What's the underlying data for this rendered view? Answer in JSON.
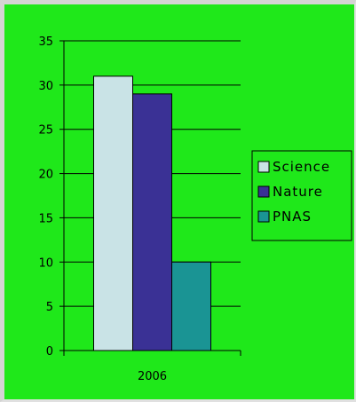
{
  "chart_data": {
    "type": "bar",
    "title": "",
    "xlabel": "",
    "ylabel": "",
    "categories": [
      "2006"
    ],
    "series": [
      {
        "name": "Science",
        "values": [
          31
        ],
        "color": "#c9e3e6"
      },
      {
        "name": "Nature",
        "values": [
          29
        ],
        "color": "#3a3195"
      },
      {
        "name": "PNAS",
        "values": [
          10
        ],
        "color": "#1a9494"
      }
    ],
    "ylim": [
      0,
      35
    ],
    "yticks": [
      0,
      5,
      10,
      15,
      20,
      25,
      30,
      35
    ],
    "grid": true,
    "legend": "right",
    "background": "#1fe81a",
    "plot_background": "#1fe81a"
  }
}
